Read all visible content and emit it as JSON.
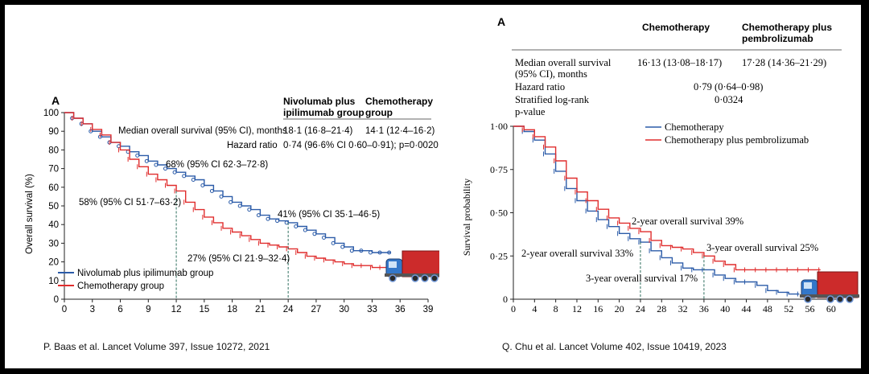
{
  "citations": {
    "left": "P. Baas et al. Lancet Volume 397, Issue 10272, 2021",
    "right": "Q. Chu et al. Lancet Volume 402, Issue 10419, 2023"
  },
  "colors": {
    "blue": "#2b5ba8",
    "red": "#e02d2d",
    "truck_cab": "#3377c9",
    "truck_trailer": "#cc2b2b"
  },
  "icons": {
    "left_chart": "truck-icon",
    "right_chart": "truck-icon"
  },
  "chart_data": [
    {
      "type": "line",
      "panel_label": "A",
      "xlabel": "",
      "ylabel": "Overall survival (%)",
      "xlim": [
        0,
        39
      ],
      "ylim": [
        0,
        100
      ],
      "x_ticks": [
        "0",
        "3",
        "6",
        "9",
        "12",
        "15",
        "18",
        "21",
        "24",
        "27",
        "30",
        "33",
        "36",
        "39"
      ],
      "y_ticks": [
        "0",
        "10",
        "20",
        "30",
        "40",
        "50",
        "60",
        "70",
        "80",
        "90",
        "100"
      ],
      "table": {
        "col1_header_line1": "Nivolumab plus",
        "col1_header_line2": "ipilimumab group",
        "col2_header_line1": "Chemotherapy",
        "col2_header_line2": "group",
        "row1_label": "Median overall survival (95% CI), months",
        "row1_col1": "18·1 (16·8–21·4)",
        "row1_col2": "14·1 (12·4–16·2)",
        "row2_label": "Hazard ratio",
        "row2_value": "0·74 (96·6% CI 0·60–0·91); p=0·0020"
      },
      "annotations": {
        "nivo_12": "68% (95% CI 62·3–72·8)",
        "chemo_12": "58% (95% CI 51·7–63·2)",
        "nivo_24": "41% (95% CI 35·1–46·5)",
        "chemo_24": "27% (95% CI 21·9–32·4)"
      },
      "series": [
        {
          "name": "Nivolumab plus ipilimumab group",
          "x": [
            0,
            1,
            2,
            3,
            4,
            5,
            6,
            7,
            8,
            9,
            10,
            11,
            12,
            13,
            14,
            15,
            16,
            17,
            18,
            19,
            20,
            21,
            22,
            23,
            24,
            25,
            26,
            27,
            28,
            29,
            30,
            31,
            32,
            33,
            34,
            35
          ],
          "y": [
            100,
            97,
            94,
            90,
            87,
            84,
            82,
            79,
            77,
            74,
            72,
            70,
            68,
            66,
            64,
            61,
            58,
            55,
            52,
            50,
            48,
            45,
            43,
            42,
            41,
            39,
            37,
            35,
            33,
            30,
            28,
            26,
            26,
            25,
            25,
            25
          ]
        },
        {
          "name": "Chemotherapy group",
          "x": [
            0,
            1,
            2,
            3,
            4,
            5,
            6,
            7,
            8,
            9,
            10,
            11,
            12,
            13,
            14,
            15,
            16,
            17,
            18,
            19,
            20,
            21,
            22,
            23,
            24,
            25,
            26,
            27,
            28,
            29,
            30,
            31,
            32,
            33,
            34,
            35,
            36
          ],
          "y": [
            100,
            97,
            94,
            91,
            88,
            84,
            80,
            75,
            71,
            67,
            64,
            61,
            58,
            52,
            48,
            44,
            41,
            38,
            36,
            34,
            32,
            30,
            29,
            28,
            27,
            25,
            23,
            22,
            21,
            20,
            19,
            18,
            18,
            17,
            17,
            16,
            15
          ]
        }
      ]
    },
    {
      "type": "line",
      "panel_label": "A",
      "xlabel": "",
      "ylabel": "Survival probability",
      "xlim": [
        0,
        62
      ],
      "ylim": [
        0,
        1
      ],
      "x_ticks": [
        "0",
        "4",
        "8",
        "12",
        "16",
        "20",
        "24",
        "28",
        "32",
        "36",
        "40",
        "44",
        "48",
        "52",
        "56",
        "60"
      ],
      "y_ticks": [
        "0",
        "0·25",
        "0·50",
        "0·75",
        "1·00"
      ],
      "table": {
        "col1_header": "Chemotherapy",
        "col2_header_line1": "Chemotherapy plus",
        "col2_header_line2": "pembrolizumab",
        "row1_label_line1": "Median overall survival",
        "row1_label_line2": "(95% CI), months",
        "row1_col1": "16·13 (13·08–18·17)",
        "row1_col2": "17·28 (14·36–21·29)",
        "row2_label": "Hazard ratio",
        "row2_value": "0·79 (0·64–0·98)",
        "row3_label_line1": "Stratified log-rank",
        "row3_label_line2": "p-value",
        "row3_value": "0·0324"
      },
      "annotations": {
        "pembro_2yr": "2-year overall survival 39%",
        "chemo_2yr": "2-year overall survival 33%",
        "pembro_3yr": "3-year overall survival 25%",
        "chemo_3yr": "3-year overall survival 17%"
      },
      "series": [
        {
          "name": "Chemotherapy",
          "x": [
            0,
            2,
            4,
            6,
            8,
            10,
            12,
            14,
            16,
            18,
            20,
            22,
            24,
            26,
            28,
            30,
            32,
            34,
            36,
            38,
            40,
            42,
            44,
            46,
            48,
            50,
            52,
            54
          ],
          "y": [
            1.0,
            0.97,
            0.92,
            0.84,
            0.74,
            0.64,
            0.57,
            0.51,
            0.46,
            0.42,
            0.38,
            0.35,
            0.33,
            0.28,
            0.24,
            0.21,
            0.18,
            0.17,
            0.17,
            0.14,
            0.12,
            0.1,
            0.1,
            0.08,
            0.05,
            0.04,
            0.03,
            0.03
          ]
        },
        {
          "name": "Chemotherapy plus pembrolizumab",
          "x": [
            0,
            2,
            4,
            6,
            8,
            10,
            12,
            14,
            16,
            18,
            20,
            22,
            24,
            26,
            28,
            30,
            32,
            34,
            36,
            38,
            40,
            42,
            44,
            46,
            48,
            50,
            52,
            54,
            56,
            58
          ],
          "y": [
            1.0,
            0.98,
            0.94,
            0.88,
            0.8,
            0.7,
            0.62,
            0.57,
            0.52,
            0.47,
            0.44,
            0.41,
            0.39,
            0.34,
            0.31,
            0.3,
            0.29,
            0.27,
            0.25,
            0.22,
            0.2,
            0.17,
            0.17,
            0.17,
            0.17,
            0.17,
            0.17,
            0.17,
            0.17,
            0.17
          ]
        }
      ]
    }
  ]
}
